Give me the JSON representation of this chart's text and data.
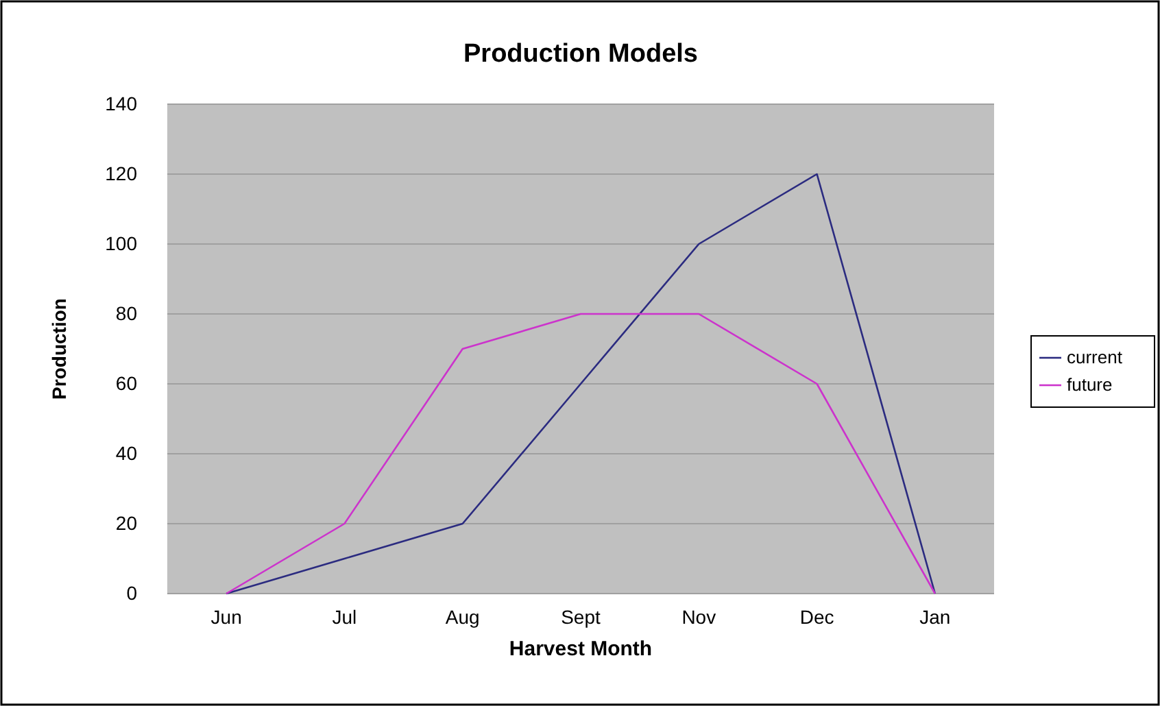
{
  "chart_data": {
    "type": "line",
    "title": "Production Models",
    "xlabel": "Harvest Month",
    "ylabel": "Production",
    "categories": [
      "Jun",
      "Jul",
      "Aug",
      "Sept",
      "Nov",
      "Dec",
      "Jan"
    ],
    "series": [
      {
        "name": "current",
        "color": "#2b2b80",
        "values": [
          0,
          10,
          20,
          60,
          100,
          120,
          0
        ]
      },
      {
        "name": "future",
        "color": "#cc33cc",
        "values": [
          0,
          20,
          70,
          80,
          80,
          60,
          0
        ]
      }
    ],
    "ylim": [
      0,
      140
    ],
    "yticks": [
      0,
      20,
      40,
      60,
      80,
      100,
      120,
      140
    ],
    "grid": "y",
    "legend": "right",
    "marker": "none",
    "line_style": "solid"
  }
}
